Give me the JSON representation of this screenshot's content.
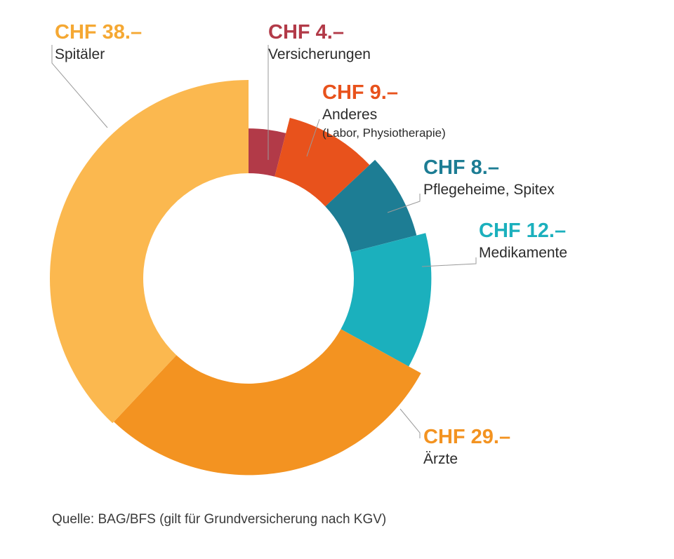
{
  "chart_data": {
    "type": "pie",
    "variant": "donut",
    "start_angle_deg": 0,
    "direction": "clockwise",
    "slices": [
      {
        "amount_label": "CHF 4.–",
        "value": 4,
        "label": "Versicherungen",
        "sublabel": "",
        "color": "#b23a48",
        "radius_scale": 0.48
      },
      {
        "amount_label": "CHF 9.–",
        "value": 9,
        "label": "Anderes",
        "sublabel": "(Labor, Physiotherapie)",
        "color": "#e8521c",
        "radius_scale": 0.65
      },
      {
        "amount_label": "CHF 8.–",
        "value": 8,
        "label": "Pflegeheime, Spitex",
        "sublabel": "",
        "color": "#1d7d94",
        "radius_scale": 0.73
      },
      {
        "amount_label": "CHF 12.–",
        "value": 12,
        "label": "Medikamente",
        "sublabel": "",
        "color": "#1bb0bd",
        "radius_scale": 0.83
      },
      {
        "amount_label": "CHF 29.–",
        "value": 29,
        "label": "Ärzte",
        "sublabel": "",
        "color": "#f39321",
        "radius_scale": 0.98
      },
      {
        "amount_label": "CHF 38.–",
        "value": 38,
        "label": "Spitäler",
        "sublabel": "",
        "color": "#fbb84f",
        "radius_scale": 1.0
      }
    ],
    "amount_colors": {
      "CHF 38.–": "#f5a833",
      "CHF 4.–": "#b23a48",
      "CHF 9.–": "#e8521c",
      "CHF 8.–": "#1d7d94",
      "CHF 12.–": "#1bb0bd",
      "CHF 29.–": "#f39321"
    }
  },
  "source": "Quelle: BAG/BFS (gilt für Grundversicherung nach KGV)"
}
